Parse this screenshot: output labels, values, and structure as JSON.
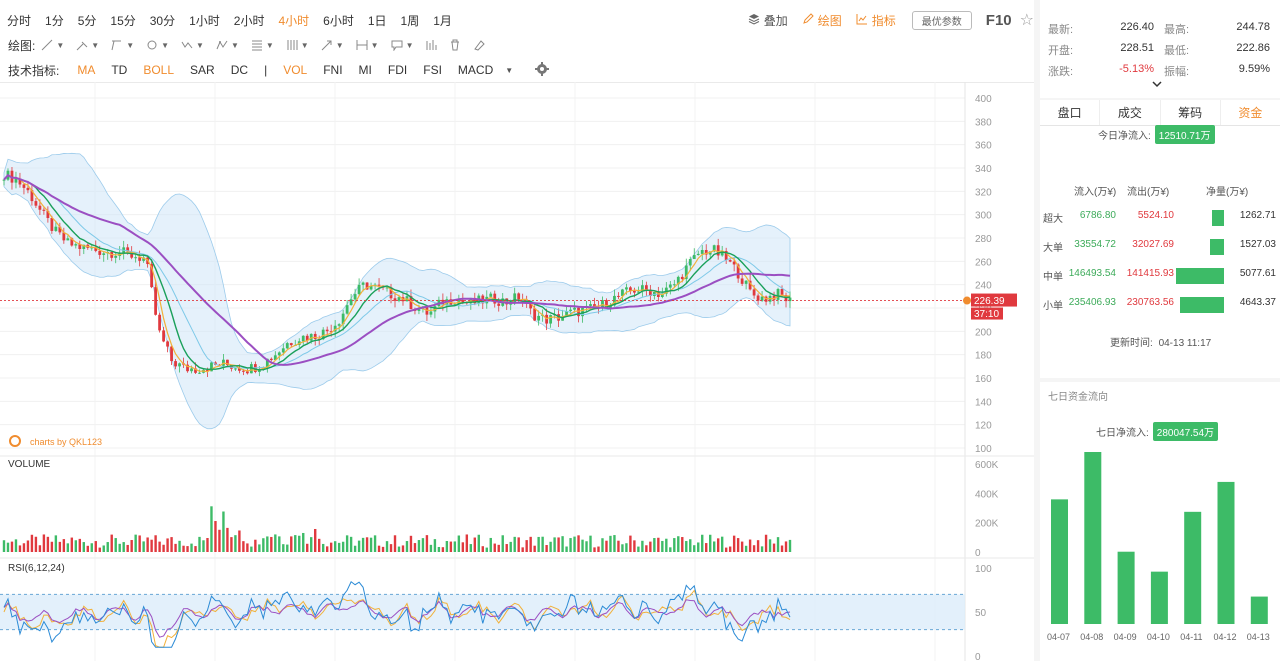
{
  "toolbar": {
    "timeframes": [
      "分时",
      "1分",
      "5分",
      "15分",
      "30分",
      "1小时",
      "2小时",
      "4小时",
      "6小时",
      "1日",
      "1周",
      "1月"
    ],
    "active_timeframe": "4小时",
    "overlay_label": "叠加",
    "draw_label": "绘图",
    "indicator_label": "指标",
    "param_label": "最优参数",
    "f10_label": "F10"
  },
  "draw_tools": {
    "label": "绘图:",
    "tools": [
      "line-tool-icon",
      "ray-tool-icon",
      "polyline-tool-icon",
      "circle-tool-icon",
      "wave-tool-icon",
      "pattern-tool-icon",
      "fib-tool-icon",
      "channel-tool-icon",
      "arrow-tool-icon",
      "range-tool-icon",
      "comment-tool-icon"
    ]
  },
  "indicators": {
    "label": "技术指标:",
    "main": [
      {
        "name": "MA",
        "on": true
      },
      {
        "name": "TD",
        "on": false
      },
      {
        "name": "BOLL",
        "on": true
      },
      {
        "name": "SAR",
        "on": false
      },
      {
        "name": "DC",
        "on": false
      }
    ],
    "sub": [
      {
        "name": "VOL",
        "on": true
      },
      {
        "name": "FNI",
        "on": false
      },
      {
        "name": "MI",
        "on": false
      },
      {
        "name": "FDI",
        "on": false
      },
      {
        "name": "FSI",
        "on": false
      },
      {
        "name": "MACD",
        "on": false
      }
    ]
  },
  "quote": {
    "latest_label": "最新:",
    "latest": "226.40",
    "high_label": "最高:",
    "high": "244.78",
    "open_label": "开盘:",
    "open": "228.51",
    "low_label": "最低:",
    "low": "222.86",
    "change_label": "涨跌:",
    "change": "-5.13%",
    "amplitude_label": "振幅:",
    "amplitude": "9.59%"
  },
  "tabs": [
    "盘口",
    "成交",
    "筹码",
    "资金"
  ],
  "active_tab": "资金",
  "capital_flow": {
    "today_label": "今日净流入:",
    "today_value": "12510.71万",
    "headers": [
      "流入(万¥)",
      "流出(万¥)",
      "净量(万¥)"
    ],
    "rows": [
      {
        "name": "超大",
        "inflow": "6786.80",
        "outflow": "5524.10",
        "net": "1262.71",
        "net_value": 1262.71
      },
      {
        "name": "大单",
        "inflow": "33554.72",
        "outflow": "32027.69",
        "net": "1527.03",
        "net_value": 1527.03
      },
      {
        "name": "中单",
        "inflow": "146493.54",
        "outflow": "141415.93",
        "net": "5077.61",
        "net_value": 5077.61
      },
      {
        "name": "小单",
        "inflow": "235406.93",
        "outflow": "230763.56",
        "net": "4643.37",
        "net_value": 4643.37
      }
    ],
    "update_label": "更新时间:",
    "update_time": "04-13 11:17"
  },
  "seven_day": {
    "title": "七日资金流向",
    "net_label": "七日净流入:",
    "net_value": "280047.54万",
    "color": "#3dbb67"
  },
  "chart_data": [
    {
      "type": "candlestick",
      "panel": "price",
      "indicators": [
        "MA",
        "BOLL"
      ],
      "y_ticks": [
        "400",
        "380",
        "360",
        "340",
        "320",
        "300",
        "280",
        "260",
        "240",
        "220",
        "200",
        "180",
        "160",
        "140",
        "120",
        "100"
      ],
      "ylim": [
        100,
        400
      ],
      "last_price": "226.39",
      "countdown": "37:10",
      "watermark": "charts by QKL123",
      "approx_close_path": [
        335,
        330,
        318,
        300,
        285,
        275,
        272,
        270,
        268,
        268,
        265,
        262,
        200,
        175,
        168,
        168,
        170,
        172,
        170,
        168,
        172,
        180,
        190,
        195,
        196,
        200,
        210,
        230,
        240,
        237,
        232,
        228,
        220,
        215,
        225,
        228,
        224,
        226,
        228,
        225,
        230,
        215,
        210,
        212,
        216,
        218,
        220,
        226,
        232,
        236,
        235,
        232,
        240,
        255,
        268,
        270,
        262,
        250,
        232,
        228,
        232,
        226
      ],
      "colors": {
        "up": "#3dbb67",
        "down": "#e0393e",
        "ma_slow": "#9b4fc2",
        "ma_mid": "#1aa05a",
        "ma_fast": "#f2b13a",
        "boll_band": "#cfe6f7"
      }
    },
    {
      "type": "bar",
      "panel": "volume",
      "title": "VOLUME",
      "y_ticks": [
        "600K",
        "400K",
        "200K",
        "0"
      ],
      "ylim": [
        0,
        600000
      ]
    },
    {
      "type": "line",
      "panel": "rsi",
      "title": "RSI(6,12,24)",
      "y_ticks": [
        "100",
        "50",
        "0"
      ],
      "ylim": [
        0,
        100
      ],
      "band": [
        30,
        70
      ]
    },
    {
      "type": "bar",
      "panel": "seven_day_flow",
      "categories": [
        "04-07",
        "04-08",
        "04-09",
        "04-10",
        "04-11",
        "04-12",
        "04-13"
      ],
      "values": [
        100,
        138,
        58,
        42,
        90,
        114,
        22
      ],
      "color": "#3dbb67"
    }
  ]
}
